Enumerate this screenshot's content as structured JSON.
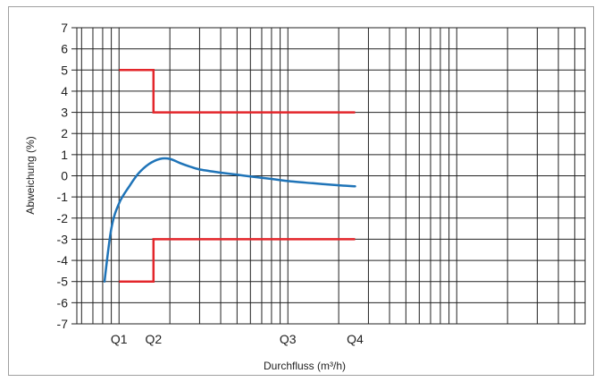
{
  "chart_data": {
    "type": "line",
    "xlabel": "Durchfluss (m³/h)",
    "ylabel": "Abweichung (%)",
    "x_scale": "log",
    "grid": true,
    "ylim": [
      -7,
      7
    ],
    "yticks": [
      "7",
      "6",
      "5",
      "4",
      "3",
      "2",
      "1",
      "0",
      "-1",
      "-2",
      "-3",
      "-4",
      "-5",
      "-6",
      "-7"
    ],
    "flow_markers": [
      "Q1",
      "Q2",
      "Q3",
      "Q4"
    ],
    "colors": {
      "limits": "#e3262b",
      "curve": "#1f74b8",
      "grid": "#222222"
    },
    "series": [
      {
        "role": "upper-limit",
        "points": [
          [
            "Q1",
            5
          ],
          [
            "Q2",
            5
          ],
          [
            "Q2",
            3
          ],
          [
            "Q4",
            3
          ]
        ]
      },
      {
        "role": "lower-limit",
        "points": [
          [
            "Q1",
            -5
          ],
          [
            "Q2",
            -5
          ],
          [
            "Q2",
            -3
          ],
          [
            "Q4",
            -3
          ]
        ]
      },
      {
        "role": "error-curve",
        "points": [
          [
            0.82,
            -5
          ],
          [
            0.9,
            -2.5
          ],
          [
            1.0,
            -1.3
          ],
          [
            1.15,
            -0.5
          ],
          [
            1.3,
            0.1
          ],
          [
            1.5,
            0.55
          ],
          [
            1.75,
            0.8
          ],
          [
            2.0,
            0.8
          ],
          [
            2.3,
            0.6
          ],
          [
            2.6,
            0.45
          ],
          [
            3.0,
            0.3
          ],
          [
            4.0,
            0.15
          ],
          [
            5.0,
            0.05
          ],
          [
            6.0,
            -0.03
          ],
          [
            8.0,
            -0.15
          ],
          [
            10.0,
            -0.25
          ],
          [
            14.0,
            -0.35
          ],
          [
            20.0,
            -0.45
          ],
          [
            25.0,
            -0.5
          ]
        ]
      }
    ]
  }
}
